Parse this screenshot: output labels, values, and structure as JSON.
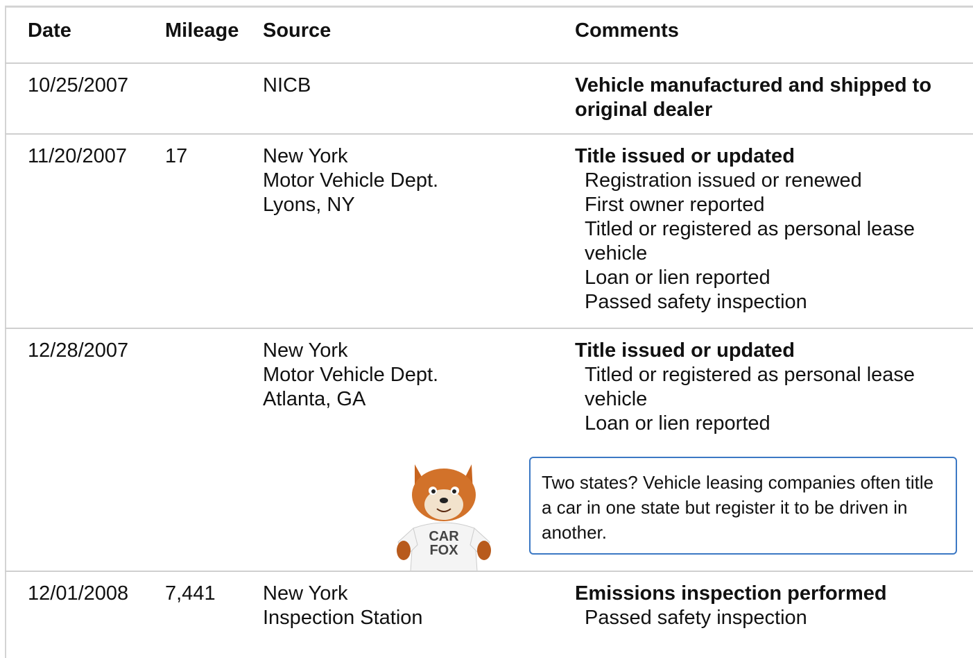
{
  "table": {
    "columns": [
      "Date",
      "Mileage",
      "Source",
      "Comments"
    ],
    "rows": [
      {
        "date": "10/25/2007",
        "source": [
          "NICB"
        ],
        "comments": {
          "headline": "Vehicle manufactured and shipped to original dealer"
        }
      },
      {
        "date": "11/20/2007",
        "mileage": "17",
        "source": [
          "New York",
          "Motor Vehicle Dept.",
          "Lyons, NY"
        ],
        "comments": {
          "headline": "Title issued or updated",
          "details": [
            "Registration issued or renewed",
            "First owner reported",
            "Titled or registered as personal lease vehicle",
            "Loan or lien reported",
            "Passed safety inspection"
          ]
        }
      },
      {
        "date": "12/28/2007",
        "source": [
          "New York",
          "Motor Vehicle Dept.",
          "Atlanta, GA"
        ],
        "comments": {
          "headline": "Title issued or updated",
          "details": [
            "Titled or registered as personal lease vehicle",
            "Loan or lien reported"
          ]
        },
        "note": "Two states? Vehicle leasing companies often title a car in one state but register it to be driven in another.",
        "mascot": [
          "CAR",
          "FOX"
        ]
      },
      {
        "date": "12/01/2008",
        "mileage": "7,441",
        "source": [
          "New York",
          "Inspection Station"
        ],
        "comments": {
          "headline": "Emissions inspection performed",
          "details": [
            "Passed safety inspection"
          ]
        }
      }
    ]
  }
}
